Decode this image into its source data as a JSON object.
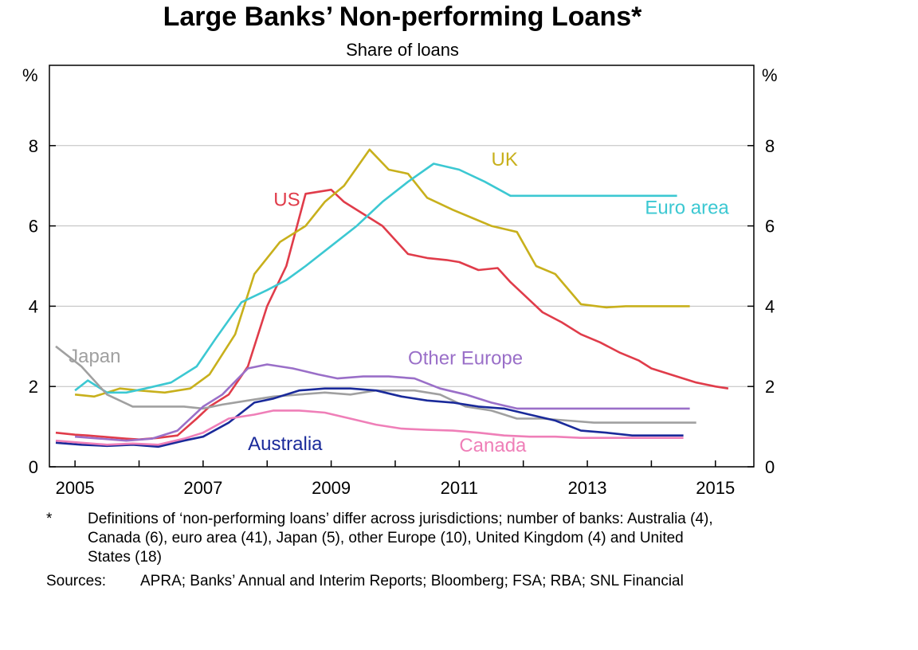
{
  "chart_data": {
    "type": "line",
    "title": "Large Banks’ Non-performing Loans*",
    "subtitle": "Share of loans",
    "y_unit_left": "%",
    "y_unit_right": "%",
    "xlim": [
      2004.6,
      2015.6
    ],
    "ylim": [
      0,
      10
    ],
    "x_ticks": [
      2005,
      2007,
      2009,
      2011,
      2013,
      2015
    ],
    "x_tick_labels": [
      "2005",
      "2007",
      "2009",
      "2011",
      "2013",
      "2015"
    ],
    "y_ticks": [
      0,
      2,
      4,
      6,
      8
    ],
    "y_tick_labels": [
      "0",
      "2",
      "4",
      "6",
      "8"
    ],
    "grid": "horizontal",
    "series": [
      {
        "name": "US",
        "color": "#e03c4a",
        "x": [
          2004.7,
          2005.0,
          2005.2,
          2005.5,
          2005.8,
          2006.0,
          2006.3,
          2006.6,
          2006.9,
          2007.1,
          2007.4,
          2007.7,
          2008.0,
          2008.3,
          2008.6,
          2009.0,
          2009.2,
          2009.5,
          2009.8,
          2010.2,
          2010.5,
          2010.8,
          2011.0,
          2011.3,
          2011.6,
          2011.8,
          2012.0,
          2012.3,
          2012.6,
          2012.9,
          2013.2,
          2013.5,
          2013.8,
          2014.0,
          2014.3,
          2014.7,
          2015.0,
          2015.2
        ],
        "y": [
          0.85,
          0.8,
          0.78,
          0.74,
          0.7,
          0.68,
          0.72,
          0.78,
          1.2,
          1.5,
          1.8,
          2.5,
          4.0,
          5.0,
          6.8,
          6.9,
          6.6,
          6.3,
          6.0,
          5.3,
          5.2,
          5.15,
          5.1,
          4.9,
          4.95,
          4.6,
          4.3,
          3.85,
          3.6,
          3.3,
          3.1,
          2.85,
          2.65,
          2.45,
          2.3,
          2.1,
          2.0,
          1.95
        ]
      },
      {
        "name": "UK",
        "color": "#c8b01c",
        "x": [
          2005.0,
          2005.3,
          2005.7,
          2006.0,
          2006.4,
          2006.8,
          2007.1,
          2007.5,
          2007.8,
          2008.2,
          2008.6,
          2008.9,
          2009.2,
          2009.6,
          2009.9,
          2010.2,
          2010.5,
          2010.9,
          2011.2,
          2011.5,
          2011.9,
          2012.2,
          2012.5,
          2012.9,
          2013.3,
          2013.6,
          2013.9,
          2014.2,
          2014.6
        ],
        "y": [
          1.8,
          1.75,
          1.95,
          1.9,
          1.85,
          1.95,
          2.3,
          3.3,
          4.8,
          5.6,
          6.0,
          6.6,
          7.0,
          7.9,
          7.4,
          7.3,
          6.7,
          6.4,
          6.2,
          6.0,
          5.85,
          5.0,
          4.8,
          4.05,
          3.97,
          4.0,
          4.0,
          4.0,
          4.0
        ]
      },
      {
        "name": "Euro area",
        "color": "#3cc8d2",
        "x": [
          2005.0,
          2005.2,
          2005.5,
          2005.8,
          2006.1,
          2006.5,
          2006.9,
          2007.2,
          2007.6,
          2008.0,
          2008.3,
          2008.6,
          2009.0,
          2009.4,
          2009.8,
          2010.2,
          2010.6,
          2011.0,
          2011.4,
          2011.8,
          2012.2,
          2012.6,
          2012.9,
          2013.2,
          2013.6,
          2014.0,
          2014.4
        ],
        "y": [
          1.9,
          2.15,
          1.85,
          1.85,
          1.95,
          2.1,
          2.5,
          3.2,
          4.1,
          4.4,
          4.65,
          5.0,
          5.5,
          6.0,
          6.6,
          7.1,
          7.55,
          7.4,
          7.1,
          6.75,
          6.75,
          6.75,
          6.75,
          6.75,
          6.75,
          6.75,
          6.75
        ]
      },
      {
        "name": "Japan",
        "color": "#a0a0a0",
        "x": [
          2004.7,
          2005.1,
          2005.5,
          2005.9,
          2006.3,
          2006.7,
          2007.0,
          2007.3,
          2007.7,
          2008.1,
          2008.5,
          2008.9,
          2009.3,
          2009.7,
          2010.0,
          2010.3,
          2010.7,
          2011.1,
          2011.5,
          2011.9,
          2012.3,
          2012.7,
          2013.1,
          2013.5,
          2013.9,
          2014.3,
          2014.7
        ],
        "y": [
          3.0,
          2.5,
          1.8,
          1.5,
          1.5,
          1.5,
          1.45,
          1.55,
          1.65,
          1.75,
          1.8,
          1.85,
          1.8,
          1.9,
          1.9,
          1.9,
          1.8,
          1.5,
          1.4,
          1.2,
          1.2,
          1.15,
          1.1,
          1.1,
          1.1,
          1.1,
          1.1
        ]
      },
      {
        "name": "Other Europe",
        "color": "#9a6fc8",
        "x": [
          2005.0,
          2005.4,
          2005.8,
          2006.2,
          2006.6,
          2007.0,
          2007.3,
          2007.7,
          2008.0,
          2008.4,
          2008.8,
          2009.1,
          2009.5,
          2009.9,
          2010.3,
          2010.7,
          2011.1,
          2011.5,
          2011.9,
          2012.3,
          2012.7,
          2013.0,
          2013.4,
          2013.8,
          2014.2,
          2014.6
        ],
        "y": [
          0.75,
          0.7,
          0.65,
          0.7,
          0.9,
          1.5,
          1.8,
          2.45,
          2.55,
          2.45,
          2.3,
          2.2,
          2.25,
          2.25,
          2.2,
          1.95,
          1.8,
          1.6,
          1.45,
          1.45,
          1.45,
          1.45,
          1.45,
          1.45,
          1.45,
          1.45
        ]
      },
      {
        "name": "Australia",
        "color": "#1a2a9a",
        "x": [
          2004.7,
          2005.1,
          2005.5,
          2005.9,
          2006.3,
          2006.7,
          2007.0,
          2007.4,
          2007.8,
          2008.1,
          2008.5,
          2008.9,
          2009.3,
          2009.7,
          2010.1,
          2010.5,
          2010.9,
          2011.3,
          2011.7,
          2012.1,
          2012.5,
          2012.9,
          2013.3,
          2013.7,
          2014.1,
          2014.5
        ],
        "y": [
          0.6,
          0.55,
          0.52,
          0.55,
          0.5,
          0.65,
          0.75,
          1.1,
          1.6,
          1.7,
          1.9,
          1.95,
          1.95,
          1.9,
          1.75,
          1.65,
          1.6,
          1.5,
          1.45,
          1.3,
          1.15,
          0.9,
          0.85,
          0.78,
          0.78,
          0.78
        ]
      },
      {
        "name": "Canada",
        "color": "#ef7fb8",
        "x": [
          2004.7,
          2005.1,
          2005.5,
          2005.9,
          2006.3,
          2006.7,
          2007.0,
          2007.4,
          2007.8,
          2008.1,
          2008.5,
          2008.9,
          2009.3,
          2009.7,
          2010.1,
          2010.5,
          2010.9,
          2011.3,
          2011.7,
          2012.1,
          2012.5,
          2012.9,
          2013.3,
          2013.7,
          2014.1,
          2014.5
        ],
        "y": [
          0.65,
          0.6,
          0.55,
          0.58,
          0.55,
          0.7,
          0.85,
          1.2,
          1.3,
          1.4,
          1.4,
          1.35,
          1.2,
          1.05,
          0.95,
          0.92,
          0.9,
          0.85,
          0.78,
          0.75,
          0.75,
          0.72,
          0.72,
          0.72,
          0.72,
          0.72
        ]
      }
    ],
    "series_labels": [
      {
        "text": "US",
        "color": "#e03c4a",
        "x": 2008.1,
        "y": 6.5
      },
      {
        "text": "UK",
        "color": "#c8b01c",
        "x": 2011.5,
        "y": 7.5
      },
      {
        "text": "Euro area",
        "color": "#3cc8d2",
        "x": 2013.9,
        "y": 6.3
      },
      {
        "text": "Japan",
        "color": "#a0a0a0",
        "x": 2004.9,
        "y": 2.6
      },
      {
        "text": "Other Europe",
        "color": "#9a6fc8",
        "x": 2010.2,
        "y": 2.55
      },
      {
        "text": "Australia",
        "color": "#1a2a9a",
        "x": 2007.7,
        "y": 0.42
      },
      {
        "text": "Canada",
        "color": "#ef7fb8",
        "x": 2011.0,
        "y": 0.38
      }
    ]
  },
  "notes": {
    "footnote_mark": "*",
    "footnote_text": "Definitions of ‘non-performing loans’ differ across jurisdictions; number of banks: Australia (4), Canada (6), euro area (41), Japan (5), other Europe (10), United Kingdom (4) and United States (18)",
    "sources_label": "Sources:",
    "sources_text": "APRA; Banks’ Annual and Interim Reports; Bloomberg; FSA; RBA; SNL Financial"
  }
}
